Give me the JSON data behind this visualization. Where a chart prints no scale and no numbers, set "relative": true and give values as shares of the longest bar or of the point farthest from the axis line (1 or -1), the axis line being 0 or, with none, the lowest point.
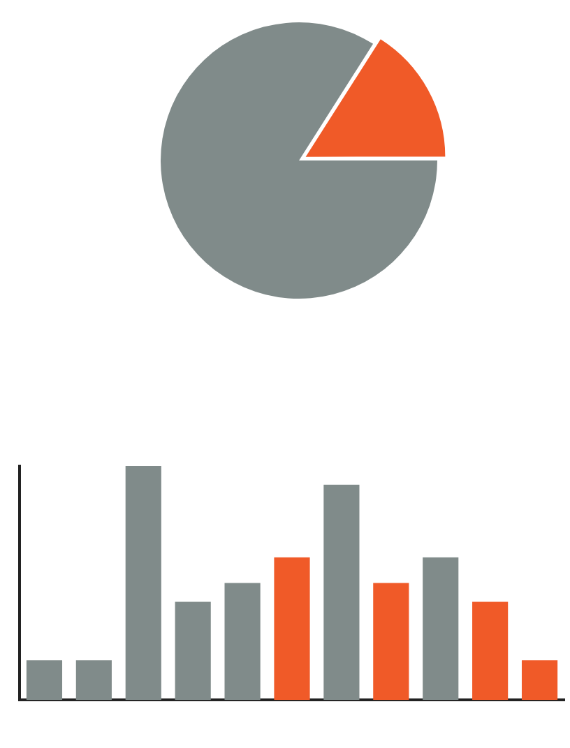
{
  "chart_data": [
    {
      "type": "pie",
      "categories": [
        null,
        null
      ],
      "values": [
        84,
        16
      ],
      "colors": [
        "#808b8a",
        "#f05a28"
      ],
      "legend": false
    },
    {
      "type": "bar",
      "relative": true,
      "categories": [
        null,
        null,
        null,
        null,
        null,
        null,
        null,
        null,
        null,
        null,
        null
      ],
      "values": [
        0.17,
        0.17,
        1,
        0.42,
        0.5,
        0.61,
        0.92,
        0.5,
        0.61,
        0.42,
        0.17
      ],
      "colors": [
        "#808b8a",
        "#808b8a",
        "#808b8a",
        "#808b8a",
        "#808b8a",
        "#f05a28",
        "#808b8a",
        "#f05a28",
        "#808b8a",
        "#f05a28",
        "#f05a28"
      ],
      "grid": false,
      "legend": false
    }
  ]
}
